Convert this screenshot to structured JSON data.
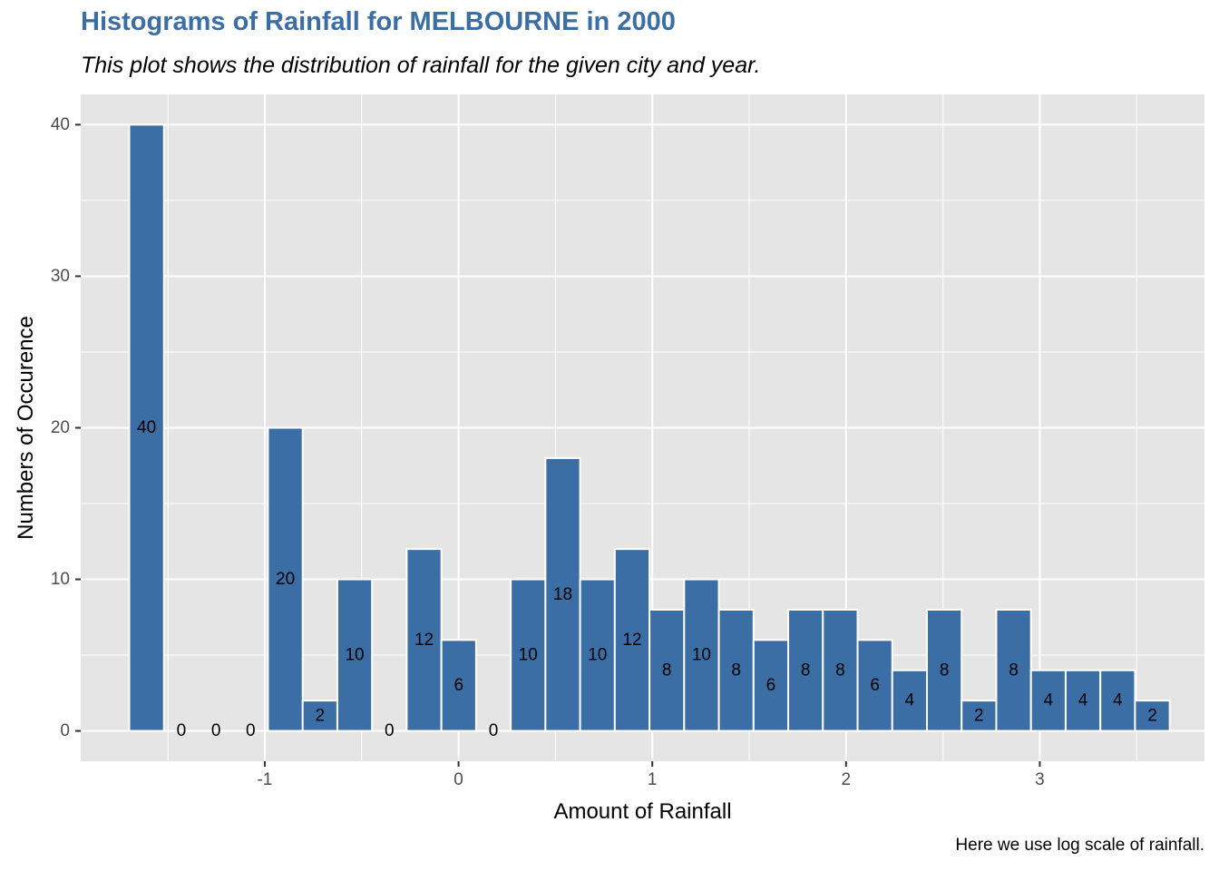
{
  "chart_data": {
    "type": "bar",
    "title": "Histograms of Rainfall for MELBOURNE in 2000",
    "subtitle": "This plot shows the distribution of rainfall for the given city and year.",
    "caption": "Here we use log scale of rainfall.",
    "xlabel": "Amount of Rainfall",
    "ylabel": "Numbers of Occurence",
    "bin_width": 0.179,
    "bins": [
      {
        "center": -1.61,
        "count": 40
      },
      {
        "center": -1.431,
        "count": 0
      },
      {
        "center": -1.252,
        "count": 0
      },
      {
        "center": -1.073,
        "count": 0
      },
      {
        "center": -0.894,
        "count": 20
      },
      {
        "center": -0.715,
        "count": 2
      },
      {
        "center": -0.536,
        "count": 10
      },
      {
        "center": -0.357,
        "count": 0
      },
      {
        "center": -0.178,
        "count": 12
      },
      {
        "center": 0.001,
        "count": 6
      },
      {
        "center": 0.18,
        "count": 0
      },
      {
        "center": 0.359,
        "count": 10
      },
      {
        "center": 0.538,
        "count": 18
      },
      {
        "center": 0.717,
        "count": 10
      },
      {
        "center": 0.896,
        "count": 12
      },
      {
        "center": 1.075,
        "count": 8
      },
      {
        "center": 1.254,
        "count": 10
      },
      {
        "center": 1.433,
        "count": 8
      },
      {
        "center": 1.612,
        "count": 6
      },
      {
        "center": 1.791,
        "count": 8
      },
      {
        "center": 1.97,
        "count": 8
      },
      {
        "center": 2.149,
        "count": 6
      },
      {
        "center": 2.328,
        "count": 4
      },
      {
        "center": 2.507,
        "count": 8
      },
      {
        "center": 2.686,
        "count": 2
      },
      {
        "center": 2.865,
        "count": 8
      },
      {
        "center": 3.044,
        "count": 4
      },
      {
        "center": 3.223,
        "count": 4
      },
      {
        "center": 3.402,
        "count": 4
      },
      {
        "center": 3.581,
        "count": 2
      }
    ],
    "x_ticks": [
      -1,
      0,
      1,
      2,
      3
    ],
    "x_tick_labels": [
      "-1",
      "0",
      "1",
      "2",
      "3"
    ],
    "y_ticks": [
      0,
      10,
      20,
      30,
      40
    ],
    "y_tick_labels": [
      "0",
      "10",
      "20",
      "30",
      "40"
    ],
    "xlim": [
      -1.95,
      3.85
    ],
    "ylim": [
      -2,
      42
    ],
    "grid": true,
    "colors": {
      "bar_fill": "#3a6ea5",
      "bar_outline": "#ffffff",
      "panel_background": "#e5e5e5",
      "grid": "#ffffff",
      "title": "#3a6ea5"
    }
  }
}
